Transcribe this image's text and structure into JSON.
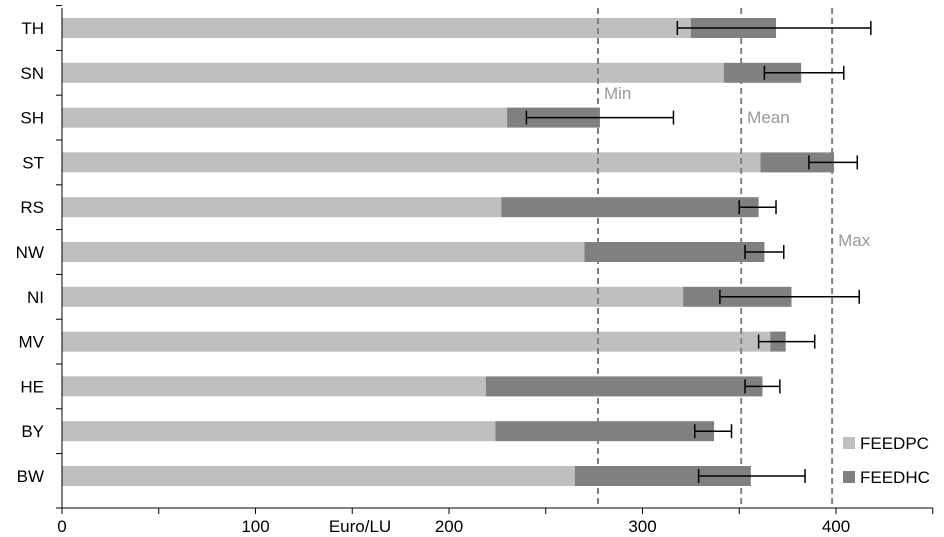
{
  "chart_data": {
    "type": "bar",
    "orientation": "horizontal",
    "stacked": true,
    "categories": [
      "TH",
      "SN",
      "SH",
      "ST",
      "RS",
      "NW",
      "NI",
      "MV",
      "HE",
      "BY",
      "BW"
    ],
    "series": [
      {
        "name": "FEEDPC",
        "color": "#bfbfbf",
        "values": [
          325,
          342,
          230,
          361,
          227,
          270,
          321,
          366,
          219,
          224,
          265
        ]
      },
      {
        "name": "FEEDHC",
        "color": "#808080",
        "values": [
          44,
          40,
          48,
          38,
          133,
          93,
          56,
          8,
          143,
          113,
          91
        ]
      }
    ],
    "error_bars": [
      {
        "low": 318,
        "high": 418
      },
      {
        "low": 363,
        "high": 404
      },
      {
        "low": 240,
        "high": 316
      },
      {
        "low": 386,
        "high": 411
      },
      {
        "low": 350,
        "high": 369
      },
      {
        "low": 353,
        "high": 373
      },
      {
        "low": 340,
        "high": 412
      },
      {
        "low": 360,
        "high": 389
      },
      {
        "low": 353,
        "high": 371
      },
      {
        "low": 327,
        "high": 346
      },
      {
        "low": 329,
        "high": 384
      }
    ],
    "reference_lines": [
      {
        "label": "Min",
        "value": 277
      },
      {
        "label": "Mean",
        "value": 351
      },
      {
        "label": "Max",
        "value": 398
      }
    ],
    "xlabel": "Euro/LU",
    "xlim": [
      0,
      450
    ],
    "xticks": [
      0,
      100,
      200,
      300,
      400
    ],
    "xtick_labels": [
      "0",
      "100",
      "200",
      "300",
      "400"
    ],
    "grid": false,
    "legend_position": "bottom-right"
  }
}
